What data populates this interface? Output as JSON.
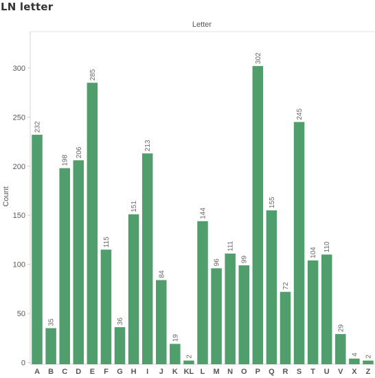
{
  "title": "LN letter",
  "chart_data": {
    "type": "bar",
    "title": "Letter",
    "xlabel": "",
    "ylabel": "Count",
    "ylim": [
      0,
      330
    ],
    "yticks": [
      0,
      50,
      100,
      150,
      200,
      250,
      300
    ],
    "grid": false,
    "bar_color": "#4f9e6b",
    "categories": [
      "A",
      "B",
      "C",
      "D",
      "E",
      "F",
      "G",
      "H",
      "I",
      "J",
      "K",
      "KL",
      "L",
      "M",
      "N",
      "O",
      "P",
      "Q",
      "R",
      "S",
      "T",
      "U",
      "V",
      "X",
      "Z"
    ],
    "values": [
      232,
      35,
      198,
      206,
      285,
      115,
      36,
      151,
      213,
      84,
      19,
      2,
      144,
      96,
      111,
      99,
      302,
      155,
      72,
      245,
      104,
      110,
      29,
      4,
      2
    ]
  }
}
